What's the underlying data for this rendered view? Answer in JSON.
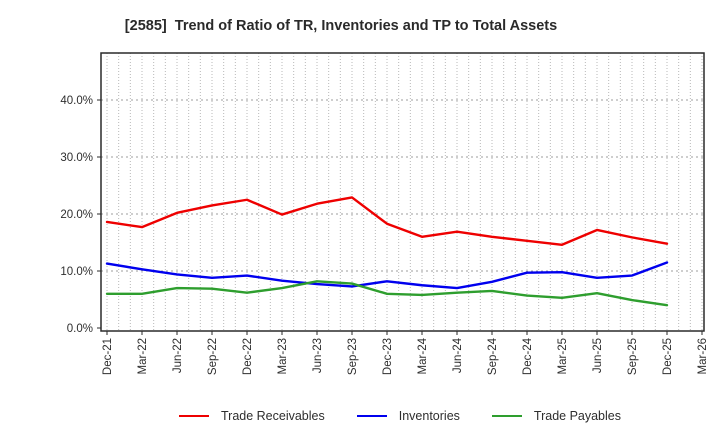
{
  "window": {
    "background": "#ffffff"
  },
  "chart_data": {
    "type": "line",
    "title": "[2585]  Trend of Ratio of TR, Inventories and TP to Total Assets",
    "xlabel": "",
    "ylabel": "",
    "ylim": [
      0,
      48
    ],
    "y_ticks": [
      "0.0%",
      "10.0%",
      "20.0%",
      "30.0%",
      "40.0%"
    ],
    "y_tick_values": [
      0,
      10,
      20,
      30,
      40
    ],
    "x_tick_labels": [
      "Dec-21",
      "Mar-22",
      "Jun-22",
      "Sep-22",
      "Dec-22",
      "Mar-23",
      "Jun-23",
      "Sep-23",
      "Dec-23",
      "Mar-24",
      "Jun-24",
      "Sep-24",
      "Dec-24",
      "Mar-25",
      "Jun-25",
      "Sep-25",
      "Dec-25",
      "Mar-26"
    ],
    "categories": [
      "Dec-21",
      "Mar-22",
      "Jun-22",
      "Sep-22",
      "Dec-22",
      "Mar-23",
      "Jun-23",
      "Sep-23",
      "Dec-23",
      "Mar-24",
      "Jun-24",
      "Sep-24",
      "Dec-24",
      "Mar-25",
      "Jun-25",
      "Sep-25",
      "Dec-25"
    ],
    "grid": true,
    "legend_position": "bottom",
    "series": [
      {
        "name": "Trade Receivables",
        "color": "#ee0000",
        "values": [
          18.6,
          17.7,
          20.2,
          21.5,
          22.5,
          19.9,
          21.8,
          22.9,
          18.3,
          16.0,
          16.9,
          16.0,
          15.3,
          14.6,
          17.2,
          15.9,
          14.8
        ]
      },
      {
        "name": "Inventories",
        "color": "#0000ee",
        "values": [
          11.3,
          10.3,
          9.4,
          8.8,
          9.2,
          8.3,
          7.7,
          7.3,
          8.2,
          7.5,
          7.0,
          8.1,
          9.7,
          9.8,
          8.8,
          9.2,
          11.5
        ]
      },
      {
        "name": "Trade Payables",
        "color": "#2e9e2e",
        "values": [
          6.0,
          6.0,
          7.0,
          6.9,
          6.2,
          7.0,
          8.2,
          7.8,
          6.0,
          5.8,
          6.2,
          6.5,
          5.7,
          5.3,
          6.1,
          4.9,
          4.0
        ]
      }
    ],
    "style": {
      "border_color": "#2a2a2a",
      "vgrid_color": "#b8b8b8",
      "hgrid_color": "#9e9e9e",
      "line_width": 2.4,
      "minor_vgrid_per_label": 3
    }
  }
}
